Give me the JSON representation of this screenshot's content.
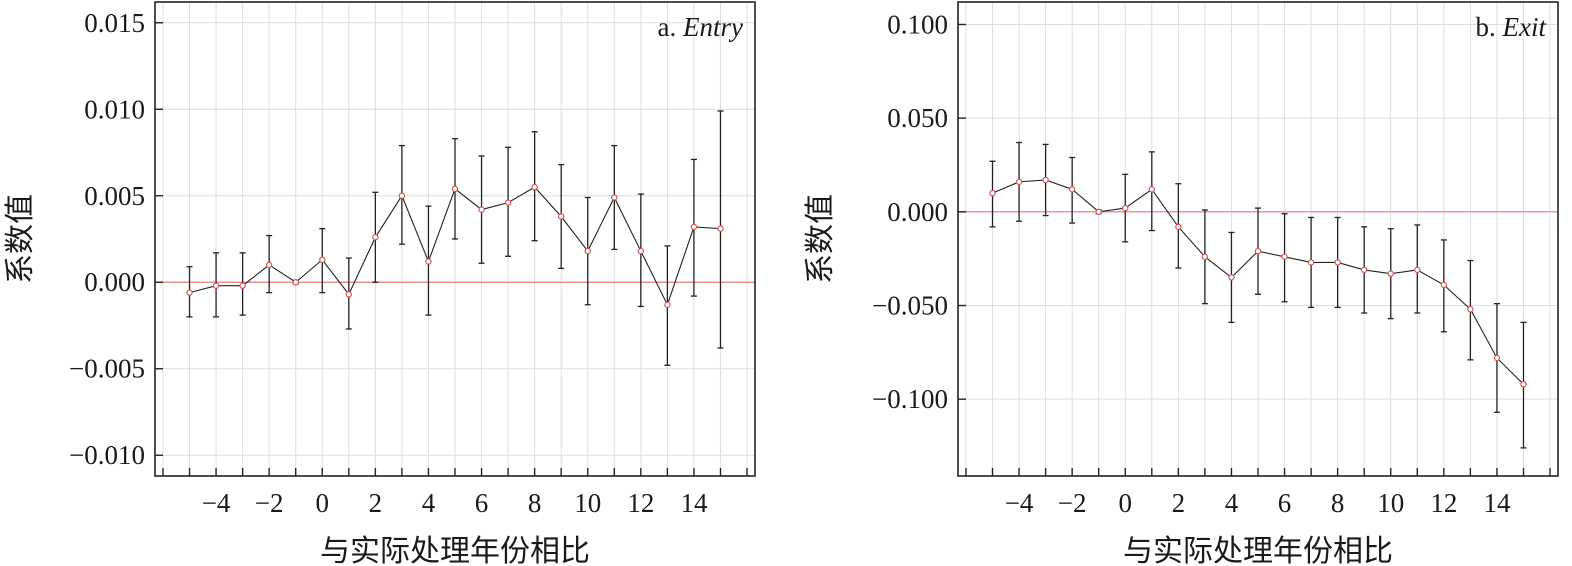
{
  "chart_data": [
    {
      "type": "line",
      "title": "a.",
      "title_italic": "Entry",
      "xlabel": "与实际处理年份相比",
      "ylabel": "系数值",
      "x": [
        -5,
        -4,
        -3,
        -2,
        -1,
        0,
        1,
        2,
        3,
        4,
        5,
        6,
        7,
        8,
        9,
        10,
        11,
        12,
        13,
        14,
        15
      ],
      "y": [
        -0.0006,
        -0.0002,
        -0.0002,
        0.001,
        0.0,
        0.0013,
        -0.0007,
        0.0026,
        0.005,
        0.0012,
        0.0054,
        0.0042,
        0.0046,
        0.0055,
        0.0038,
        0.0018,
        0.0049,
        0.0018,
        -0.0013,
        0.0032,
        0.0031
      ],
      "ci_low": [
        -0.002,
        -0.002,
        -0.0019,
        -0.0006,
        -0.0001,
        -0.0006,
        -0.0027,
        0.0,
        0.0022,
        -0.0019,
        0.0025,
        0.0011,
        0.0015,
        0.0024,
        0.0008,
        -0.0013,
        0.0019,
        -0.0014,
        -0.0048,
        -0.0008,
        -0.0038
      ],
      "ci_high": [
        0.0009,
        0.0017,
        0.0017,
        0.0027,
        0.0001,
        0.0031,
        0.0014,
        0.0052,
        0.0079,
        0.0044,
        0.0083,
        0.0073,
        0.0078,
        0.0087,
        0.0068,
        0.0049,
        0.0079,
        0.0051,
        0.0021,
        0.0071,
        0.0099
      ],
      "reference_line": 0,
      "ylim": [
        -0.0112,
        0.0162
      ],
      "xlim": [
        -6.3,
        16.3
      ],
      "yticks": [
        -0.01,
        -0.005,
        0.0,
        0.005,
        0.01,
        0.015
      ],
      "ytick_labels": [
        "−0.010",
        "−0.005",
        "0.000",
        "0.005",
        "0.010",
        "0.015"
      ],
      "xticks": [
        -4,
        -2,
        0,
        2,
        4,
        6,
        8,
        10,
        12,
        14
      ],
      "xtick_labels": [
        "−4",
        "−2",
        "0",
        "2",
        "4",
        "6",
        "8",
        "10",
        "12",
        "14"
      ],
      "grid": true,
      "colors": {
        "line": "#222222",
        "marker": "#d9534f",
        "reference": "#e8908c",
        "grid": "#dedede"
      }
    },
    {
      "type": "line",
      "title": "b.",
      "title_italic": "Exit",
      "xlabel": "与实际处理年份相比",
      "ylabel": "系数值",
      "x": [
        -5,
        -4,
        -3,
        -2,
        -1,
        0,
        1,
        2,
        3,
        4,
        5,
        6,
        7,
        8,
        9,
        10,
        11,
        12,
        13,
        14,
        15
      ],
      "y": [
        0.01,
        0.016,
        0.017,
        0.012,
        0.0,
        0.002,
        0.012,
        -0.008,
        -0.024,
        -0.035,
        -0.021,
        -0.024,
        -0.027,
        -0.027,
        -0.031,
        -0.033,
        -0.031,
        -0.039,
        -0.052,
        -0.078,
        -0.092
      ],
      "ci_low": [
        -0.008,
        -0.005,
        -0.002,
        -0.006,
        -0.001,
        -0.016,
        -0.01,
        -0.03,
        -0.049,
        -0.059,
        -0.044,
        -0.048,
        -0.051,
        -0.051,
        -0.054,
        -0.057,
        -0.054,
        -0.064,
        -0.079,
        -0.107,
        -0.126
      ],
      "ci_high": [
        0.027,
        0.037,
        0.036,
        0.029,
        0.001,
        0.02,
        0.032,
        0.015,
        0.001,
        -0.011,
        0.002,
        -0.001,
        -0.003,
        -0.003,
        -0.008,
        -0.009,
        -0.007,
        -0.015,
        -0.026,
        -0.049,
        -0.059
      ],
      "reference_line": 0,
      "ylim": [
        -0.141,
        0.112
      ],
      "xlim": [
        -6.3,
        16.3
      ],
      "yticks": [
        -0.1,
        -0.05,
        0.0,
        0.05,
        0.1
      ],
      "ytick_labels": [
        "−0.100",
        "−0.050",
        "0.000",
        "0.050",
        "0.100"
      ],
      "xticks": [
        -4,
        -2,
        0,
        2,
        4,
        6,
        8,
        10,
        12,
        14
      ],
      "xtick_labels": [
        "−4",
        "−2",
        "0",
        "2",
        "4",
        "6",
        "8",
        "10",
        "12",
        "14"
      ],
      "grid": true,
      "colors": {
        "line": "#222222",
        "marker": "#d9534f",
        "reference": "#e8908c",
        "grid": "#dedede"
      }
    }
  ]
}
